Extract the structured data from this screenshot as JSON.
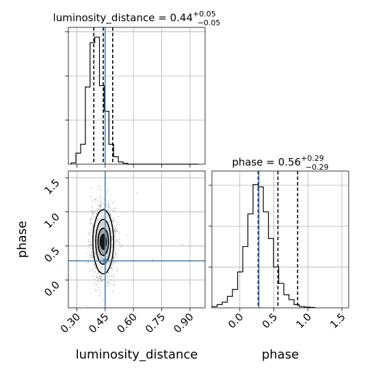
{
  "chart_data": {
    "type": "corner",
    "truth": {
      "luminosity_distance": 0.45,
      "phase": 0.28
    },
    "panels": [
      {
        "id": "hist_luminosity_distance",
        "type": "histogram",
        "parameter": "luminosity_distance",
        "title": {
          "prefix": "luminosity_distance = ",
          "median": "0.44",
          "upper": "+0.05",
          "lower": "−0.05"
        },
        "bin_start": 0.27,
        "bin_width": 0.025,
        "counts": [
          3,
          25,
          45,
          175,
          275,
          288,
          178,
          120,
          45,
          17,
          5,
          2,
          0,
          0,
          0,
          0,
          0,
          0,
          0,
          0,
          0,
          0,
          0,
          0,
          0,
          0,
          0
        ],
        "quantiles": [
          0.39,
          0.44,
          0.49
        ],
        "xlim": [
          0.255,
          0.98
        ],
        "ylim": [
          0,
          310
        ]
      },
      {
        "id": "hist_phase",
        "type": "histogram",
        "parameter": "phase",
        "title": {
          "prefix": "phase = ",
          "median": "0.56",
          "upper": "+0.29",
          "lower": "−0.29"
        },
        "bin_start": -0.41,
        "bin_width": 0.0755,
        "counts": [
          3,
          8,
          14,
          28,
          45,
          88,
          150,
          230,
          302,
          296,
          235,
          170,
          100,
          60,
          32,
          20,
          8,
          3,
          2,
          1
        ],
        "quantiles": [
          0.27,
          0.56,
          0.85
        ],
        "xlim": [
          -0.41,
          1.6
        ],
        "ylim": [
          0,
          335
        ]
      },
      {
        "id": "joint_luminosity_distance_phase",
        "type": "2d_density",
        "x_parameter": "luminosity_distance",
        "y_parameter": "phase",
        "center": [
          0.44,
          0.56
        ],
        "contour_half_widths": [
          [
            0.016,
            0.1
          ],
          [
            0.028,
            0.2
          ],
          [
            0.04,
            0.33
          ],
          [
            0.055,
            0.47
          ]
        ],
        "xlim": [
          0.255,
          0.98
        ],
        "ylim": [
          -0.41,
          1.6
        ]
      }
    ],
    "axes": {
      "luminosity_distance": {
        "label": "luminosity_distance",
        "ticks": [
          0.3,
          0.45,
          0.6,
          0.75,
          0.9
        ],
        "tick_labels": [
          "0.30",
          "0.45",
          "0.60",
          "0.75",
          "0.90"
        ]
      },
      "phase_x": {
        "label": "phase",
        "ticks": [
          0.0,
          0.5,
          1.0,
          1.5
        ],
        "tick_labels": [
          "0.0",
          "0.5",
          "1.0",
          "1.5"
        ]
      },
      "phase_y": {
        "label": "phase",
        "ticks": [
          0.0,
          0.5,
          1.0,
          1.5
        ],
        "tick_labels": [
          "0.0",
          "0.5",
          "1.0",
          "1.5"
        ]
      }
    },
    "grid": true,
    "colors": {
      "truth": "#4682b4",
      "line": "#000000",
      "points": "#555555"
    }
  }
}
